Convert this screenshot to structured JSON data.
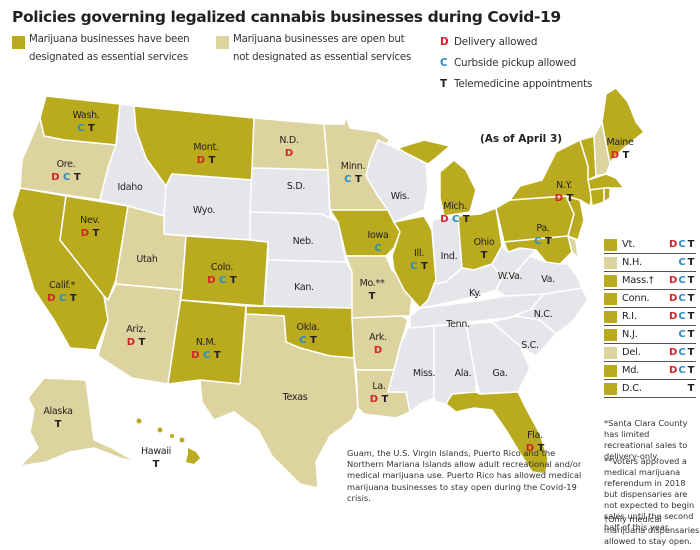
{
  "title": "Policies governing legalized cannabis businesses during Covid-19",
  "as_of": "(As of April 3)",
  "colors": {
    "essential": "#b9aa1e",
    "open_not_essential": "#dcd39e",
    "neither": "#e5e6ea",
    "delivery": "#d2232a",
    "curbside": "#2a8bc8",
    "telemedicine": "#231f20"
  },
  "legend": {
    "essential": {
      "line1": "Marijuana businesses have been",
      "line2": "designated as essential services"
    },
    "open": {
      "line1": "Marijuana businesses are open but",
      "line2": "not designated as essential services"
    },
    "keys": [
      {
        "letter": "D",
        "label": "Delivery allowed"
      },
      {
        "letter": "C",
        "label": "Curbside pickup allowed"
      },
      {
        "letter": "T",
        "label": "Telemedicine appointments"
      }
    ]
  },
  "states": {
    "wash": {
      "name": "Wash.",
      "status": "essential",
      "codes": [
        "C",
        "T"
      ]
    },
    "ore": {
      "name": "Ore.",
      "status": "open",
      "codes": [
        "D",
        "C",
        "T"
      ]
    },
    "calif": {
      "name": "Calif.*",
      "status": "essential",
      "codes": [
        "D",
        "C",
        "T"
      ]
    },
    "nev": {
      "name": "Nev.",
      "status": "essential",
      "codes": [
        "D",
        "T"
      ]
    },
    "idaho": {
      "name": "Idaho",
      "status": "none",
      "codes": []
    },
    "mont": {
      "name": "Mont.",
      "status": "essential",
      "codes": [
        "D",
        "T"
      ]
    },
    "wyo": {
      "name": "Wyo.",
      "status": "none",
      "codes": []
    },
    "utah": {
      "name": "Utah",
      "status": "open",
      "codes": []
    },
    "colo": {
      "name": "Colo.",
      "status": "essential",
      "codes": [
        "D",
        "C",
        "T"
      ]
    },
    "ariz": {
      "name": "Ariz.",
      "status": "open",
      "codes": [
        "D",
        "T"
      ]
    },
    "nm": {
      "name": "N.M.",
      "status": "essential",
      "codes": [
        "D",
        "C",
        "T"
      ]
    },
    "nd": {
      "name": "N.D.",
      "status": "open",
      "codes": [
        "D"
      ]
    },
    "sd": {
      "name": "S.D.",
      "status": "none",
      "codes": []
    },
    "neb": {
      "name": "Neb.",
      "status": "none",
      "codes": []
    },
    "kan": {
      "name": "Kan.",
      "status": "none",
      "codes": []
    },
    "okla": {
      "name": "Okla.",
      "status": "essential",
      "codes": [
        "C",
        "T"
      ]
    },
    "texas": {
      "name": "Texas",
      "status": "open",
      "codes": []
    },
    "minn": {
      "name": "Minn.",
      "status": "open",
      "codes": [
        "C",
        "T"
      ]
    },
    "iowa": {
      "name": "Iowa",
      "status": "essential",
      "codes": [
        "C"
      ]
    },
    "mo": {
      "name": "Mo.**",
      "status": "open",
      "codes": [
        "T"
      ]
    },
    "ark": {
      "name": "Ark.",
      "status": "open",
      "codes": [
        "D"
      ]
    },
    "la": {
      "name": "La.",
      "status": "open",
      "codes": [
        "D",
        "T"
      ]
    },
    "wis": {
      "name": "Wis.",
      "status": "none",
      "codes": []
    },
    "ill": {
      "name": "Ill.",
      "status": "essential",
      "codes": [
        "C",
        "T"
      ]
    },
    "mich": {
      "name": "Mich.",
      "status": "essential",
      "codes": [
        "D",
        "C",
        "T"
      ]
    },
    "ind": {
      "name": "Ind.",
      "status": "none",
      "codes": []
    },
    "ohio": {
      "name": "Ohio",
      "status": "essential",
      "codes": [
        "T"
      ]
    },
    "ky": {
      "name": "Ky.",
      "status": "none",
      "codes": []
    },
    "tenn": {
      "name": "Tenn.",
      "status": "none",
      "codes": []
    },
    "miss": {
      "name": "Miss.",
      "status": "none",
      "codes": []
    },
    "ala": {
      "name": "Ala.",
      "status": "none",
      "codes": []
    },
    "ga": {
      "name": "Ga.",
      "status": "none",
      "codes": []
    },
    "fla": {
      "name": "Fla.",
      "status": "essential",
      "codes": [
        "D",
        "T"
      ]
    },
    "sc": {
      "name": "S.C.",
      "status": "none",
      "codes": []
    },
    "nc": {
      "name": "N.C.",
      "status": "none",
      "codes": []
    },
    "va": {
      "name": "Va.",
      "status": "none",
      "codes": []
    },
    "wva": {
      "name": "W.Va.",
      "status": "none",
      "codes": []
    },
    "pa": {
      "name": "Pa.",
      "status": "essential",
      "codes": [
        "C",
        "T"
      ]
    },
    "ny": {
      "name": "N.Y.",
      "status": "essential",
      "codes": [
        "D",
        "T"
      ]
    },
    "maine": {
      "name": "Maine",
      "status": "essential",
      "codes": [
        "D",
        "T"
      ]
    },
    "alaska": {
      "name": "Alaska",
      "status": "open",
      "codes": [
        "T"
      ]
    },
    "hawaii": {
      "name": "Hawaii",
      "status": "essential",
      "codes": [
        "T"
      ]
    }
  },
  "northeast_table": [
    {
      "name": "Vt.",
      "status": "essential",
      "codes": [
        "D",
        "C",
        "T"
      ]
    },
    {
      "name": "N.H.",
      "status": "open",
      "codes": [
        "",
        "C",
        "T"
      ]
    },
    {
      "name": "Mass.†",
      "status": "essential",
      "codes": [
        "D",
        "C",
        "T"
      ]
    },
    {
      "name": "Conn.",
      "status": "essential",
      "codes": [
        "D",
        "C",
        "T"
      ]
    },
    {
      "name": "R.I.",
      "status": "essential",
      "codes": [
        "D",
        "C",
        "T"
      ]
    },
    {
      "name": "N.J.",
      "status": "essential",
      "codes": [
        "",
        "C",
        "T"
      ]
    },
    {
      "name": "Del.",
      "status": "open",
      "codes": [
        "D",
        "C",
        "T"
      ]
    },
    {
      "name": "Md.",
      "status": "essential",
      "codes": [
        "D",
        "C",
        "T"
      ]
    },
    {
      "name": "D.C.",
      "status": "essential",
      "codes": [
        "",
        "",
        "T"
      ]
    }
  ],
  "notes": {
    "santa_clara": "*Santa Clara County has limited recreational sales to delivery-only.",
    "missouri": "**Voters approved a medical marijuana referendum in 2018 but dispensaries are not expected to begin sales until the second half of this year.",
    "mass": "†Only medical marijuana dispensaries allowed to stay open."
  },
  "territories_note": "Guam, the U.S. Virgin Islands, Puerto Rico and the Northern Mariana Islands allow adult recreational and/or medical marijuana use. Puerto Rico has allowed medical marijuana businesses to stay open during the Covid-19 crisis."
}
